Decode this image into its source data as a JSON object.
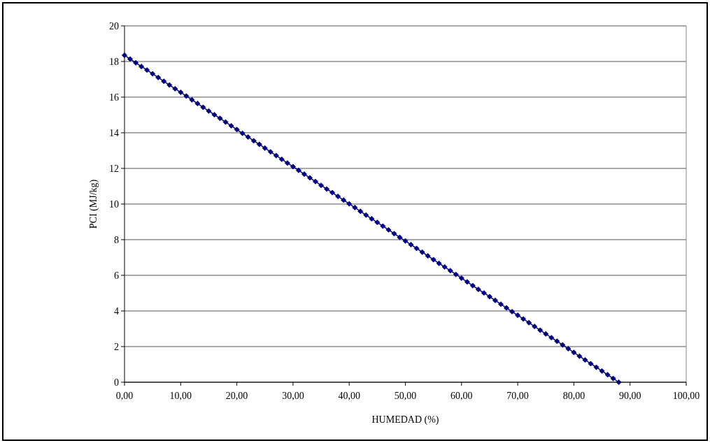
{
  "chart_data": {
    "type": "line",
    "xlabel": "HUMEDAD (%)",
    "ylabel": "PCI (MJ/kg)",
    "x": [
      0,
      1,
      2,
      3,
      4,
      5,
      6,
      7,
      8,
      9,
      10,
      11,
      12,
      13,
      14,
      15,
      16,
      17,
      18,
      19,
      20,
      21,
      22,
      23,
      24,
      25,
      26,
      27,
      28,
      29,
      30,
      31,
      32,
      33,
      34,
      35,
      36,
      37,
      38,
      39,
      40,
      41,
      42,
      43,
      44,
      45,
      46,
      47,
      48,
      49,
      50,
      51,
      52,
      53,
      54,
      55,
      56,
      57,
      58,
      59,
      60,
      61,
      62,
      63,
      64,
      65,
      66,
      67,
      68,
      69,
      70,
      71,
      72,
      73,
      74,
      75,
      76,
      77,
      78,
      79,
      80,
      81,
      82,
      83,
      84,
      85,
      86,
      87,
      88
    ],
    "series": [
      {
        "color": "#000080",
        "values": [
          18.35,
          18.14,
          17.93,
          17.72,
          17.52,
          17.31,
          17.1,
          16.89,
          16.68,
          16.47,
          16.27,
          16.06,
          15.85,
          15.64,
          15.43,
          15.22,
          15.01,
          14.81,
          14.6,
          14.39,
          14.18,
          13.97,
          13.76,
          13.55,
          13.35,
          13.14,
          12.93,
          12.72,
          12.51,
          12.3,
          12.1,
          11.89,
          11.68,
          11.47,
          11.26,
          11.05,
          10.84,
          10.64,
          10.43,
          10.22,
          10.01,
          9.8,
          9.59,
          9.38,
          9.17,
          8.97,
          8.76,
          8.55,
          8.34,
          8.13,
          7.93,
          7.72,
          7.51,
          7.3,
          7.09,
          6.88,
          6.67,
          6.47,
          6.26,
          6.05,
          5.84,
          5.63,
          5.42,
          5.21,
          5.01,
          4.8,
          4.59,
          4.38,
          4.17,
          3.96,
          3.76,
          3.55,
          3.34,
          3.13,
          2.92,
          2.71,
          2.5,
          2.3,
          2.09,
          1.88,
          1.67,
          1.46,
          1.25,
          1.04,
          0.84,
          0.63,
          0.42,
          0.21,
          0.0
        ]
      }
    ],
    "xlim": [
      0,
      100
    ],
    "xticks": [
      {
        "value": 0,
        "label": "0,00"
      },
      {
        "value": 10,
        "label": "10,00"
      },
      {
        "value": 20,
        "label": "20,00"
      },
      {
        "value": 30,
        "label": "30,00"
      },
      {
        "value": 40,
        "label": "40,00"
      },
      {
        "value": 50,
        "label": "50,00"
      },
      {
        "value": 60,
        "label": "60,00"
      },
      {
        "value": 70,
        "label": "70,00"
      },
      {
        "value": 80,
        "label": "80,00"
      },
      {
        "value": 90,
        "label": "90,00"
      },
      {
        "value": 100,
        "label": "100,00"
      }
    ],
    "ylim": [
      0,
      20
    ],
    "yticks": [
      0,
      2,
      4,
      6,
      8,
      10,
      12,
      14,
      16,
      18,
      20
    ],
    "grid": "y",
    "marker": "diamond",
    "line_style": "solid"
  }
}
